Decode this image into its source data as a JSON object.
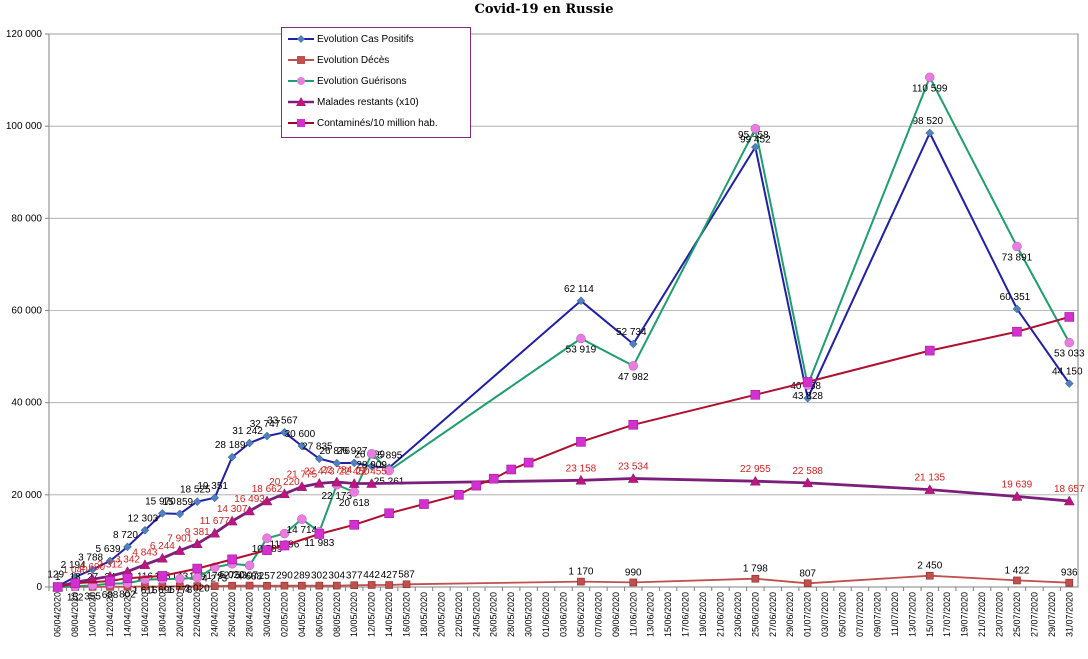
{
  "chart_data": {
    "type": "line",
    "title": "Covid-19 en Russie",
    "ylim": [
      0,
      120000
    ],
    "yticks": [
      0,
      20000,
      40000,
      60000,
      80000,
      100000,
      120000
    ],
    "ytick_labels": [
      "0",
      "20 000",
      "40 000",
      "60 000",
      "80 000",
      "100 000",
      "120 000"
    ],
    "grid": true,
    "legend_position": "top-left",
    "x_dates": [
      "06/04/2020",
      "08/04/2020",
      "10/04/2020",
      "12/04/2020",
      "14/04/2020",
      "16/04/2020",
      "18/04/2020",
      "20/04/2020",
      "22/04/2020",
      "24/04/2020",
      "26/04/2020",
      "28/04/2020",
      "30/04/2020",
      "02/05/2020",
      "04/05/2020",
      "06/05/2020",
      "08/05/2020",
      "10/05/2020",
      "12/05/2020",
      "14/05/2020",
      "16/05/2020",
      "18/05/2020",
      "20/05/2020",
      "22/05/2020",
      "24/05/2020",
      "26/05/2020",
      "28/05/2020",
      "30/05/2020",
      "01/06/2020",
      "03/06/2020",
      "05/06/2020",
      "07/06/2020",
      "09/06/2020",
      "11/06/2020",
      "13/06/2020",
      "15/06/2020",
      "17/06/2020",
      "19/06/2020",
      "21/06/2020",
      "23/06/2020",
      "25/06/2020",
      "27/06/2020",
      "29/06/2020",
      "01/07/2020",
      "03/07/2020",
      "05/07/2020",
      "07/07/2020",
      "09/07/2020",
      "11/07/2020",
      "13/07/2020",
      "15/07/2020",
      "17/07/2020",
      "19/07/2020",
      "21/07/2020",
      "23/07/2020",
      "25/07/2020",
      "27/07/2020",
      "29/07/2020",
      "31/07/2020"
    ],
    "series": [
      {
        "name": "Evolution Cas Positifs",
        "color": "#1f1fa8",
        "marker": "diamond",
        "points": [
          [
            "06/04/2020",
            129
          ],
          [
            "08/04/2020",
            2194
          ],
          [
            "10/04/2020",
            3788
          ],
          [
            "12/04/2020",
            5639
          ],
          [
            "14/04/2020",
            8720
          ],
          [
            "16/04/2020",
            12303
          ],
          [
            "18/04/2020",
            15970
          ],
          [
            "20/04/2020",
            15859
          ],
          [
            "22/04/2020",
            18525
          ],
          [
            "24/04/2020",
            19351
          ],
          [
            "26/04/2020",
            28189
          ],
          [
            "28/04/2020",
            31242
          ],
          [
            "30/04/2020",
            32747
          ],
          [
            "02/05/2020",
            33567
          ],
          [
            "04/05/2020",
            30600
          ],
          [
            "06/05/2020",
            27835
          ],
          [
            "08/05/2020",
            26876
          ],
          [
            "10/05/2020",
            26927
          ],
          [
            "12/05/2020",
            26199
          ],
          [
            "14/05/2020",
            25895
          ],
          [
            "05/06/2020",
            62114
          ],
          [
            "11/06/2020",
            52734
          ],
          [
            "25/06/2020",
            95458
          ],
          [
            "01/07/2020",
            40968
          ],
          [
            "15/07/2020",
            98520
          ],
          [
            "25/07/2020",
            60351
          ],
          [
            "31/07/2020",
            44150
          ]
        ],
        "labels": [
          "129",
          "2 194",
          "3 788",
          "5 639",
          "8 720",
          "12 303",
          "15 970",
          "15 859",
          "18 525",
          "19 351",
          "28 189",
          "31 242",
          "32 747",
          "33 567",
          "30 600",
          "27 835",
          "26 876",
          "26 927",
          "26 199",
          "25 895",
          "62 114",
          "52 734",
          "95 458",
          "40 968",
          "98 520",
          "60 351",
          "44 150"
        ]
      },
      {
        "name": "Evolution Décès",
        "color": "#c0504d",
        "marker": "square",
        "points": [
          [
            "06/04/2020",
            1
          ],
          [
            "08/04/2020",
            18
          ],
          [
            "10/04/2020",
            27
          ],
          [
            "12/04/2020",
            34
          ],
          [
            "14/04/2020",
            58
          ],
          [
            "16/04/2020",
            116
          ],
          [
            "18/04/2020",
            115
          ],
          [
            "20/04/2020",
            143
          ],
          [
            "22/04/2020",
            159
          ],
          [
            "24/04/2020",
            179
          ],
          [
            "26/04/2020",
            275
          ],
          [
            "28/04/2020",
            307
          ],
          [
            "30/04/2020",
            257
          ],
          [
            "02/05/2020",
            290
          ],
          [
            "04/05/2020",
            289
          ],
          [
            "06/05/2020",
            302
          ],
          [
            "08/05/2020",
            304
          ],
          [
            "10/05/2020",
            377
          ],
          [
            "12/05/2020",
            442
          ],
          [
            "14/05/2020",
            427
          ],
          [
            "16/05/2020",
            587
          ],
          [
            "05/06/2020",
            1170
          ],
          [
            "11/06/2020",
            990
          ],
          [
            "25/06/2020",
            1798
          ],
          [
            "01/07/2020",
            807
          ],
          [
            "15/07/2020",
            2450
          ],
          [
            "25/07/2020",
            1422
          ],
          [
            "31/07/2020",
            936
          ]
        ],
        "labels": [
          "1",
          "18",
          "27",
          "34",
          "58",
          "116",
          "115",
          "143",
          "159",
          "179",
          "275",
          "307",
          "257",
          "290",
          "289",
          "302",
          "304",
          "377",
          "442",
          "427",
          "587",
          "1 170",
          "990",
          "1 798",
          "807",
          "2 450",
          "1 422",
          "936"
        ]
      },
      {
        "name": "Evolution Guérisons",
        "color": "#1e9e6e",
        "marker": "circle",
        "points": [
          [
            "06/04/2020",
            0
          ],
          [
            "08/04/2020",
            152
          ],
          [
            "10/04/2020",
            355
          ],
          [
            "12/04/2020",
            688
          ],
          [
            "14/04/2020",
            802
          ],
          [
            "16/04/2020",
            1616
          ],
          [
            "18/04/2020",
            1695
          ],
          [
            "20/04/2020",
            1778
          ],
          [
            "22/04/2020",
            2020
          ],
          [
            "24/04/2020",
            4273
          ],
          [
            "26/04/2020",
            5020
          ],
          [
            "28/04/2020",
            4688
          ],
          [
            "30/04/2020",
            10589
          ],
          [
            "02/05/2020",
            11596
          ],
          [
            "04/05/2020",
            14714
          ],
          [
            "06/05/2020",
            11983
          ],
          [
            "08/05/2020",
            22173
          ],
          [
            "10/05/2020",
            20618
          ],
          [
            "12/05/2020",
            28909
          ],
          [
            "14/05/2020",
            25261
          ],
          [
            "05/06/2020",
            53919
          ],
          [
            "11/06/2020",
            47982
          ],
          [
            "25/06/2020",
            99452
          ],
          [
            "01/07/2020",
            43828
          ],
          [
            "15/07/2020",
            110599
          ],
          [
            "25/07/2020",
            73891
          ],
          [
            "31/07/2020",
            53033
          ]
        ],
        "labels": [
          "",
          "152",
          "355",
          "688",
          "802",
          "1 616",
          "1 695",
          "1 778",
          "2 020",
          "4 273",
          "5 020",
          "4 688",
          "10 589",
          "11 596",
          "14 714",
          "11 983",
          "22 173",
          "20 618",
          "28 909",
          "25 261",
          "53 919",
          "47 982",
          "99 452",
          "43 828",
          "110 599",
          "73 891",
          "53 033"
        ]
      },
      {
        "name": "Malades restants (x10)",
        "color": "#7b1f7b",
        "marker": "triangle",
        "label_color": "#d32020",
        "points": [
          [
            "06/04/2020",
            0
          ],
          [
            "08/04/2020",
            1040
          ],
          [
            "10/04/2020",
            1690
          ],
          [
            "12/04/2020",
            2312
          ],
          [
            "14/04/2020",
            3342
          ],
          [
            "16/04/2020",
            4843
          ],
          [
            "18/04/2020",
            6244
          ],
          [
            "20/04/2020",
            7901
          ],
          [
            "22/04/2020",
            9381
          ],
          [
            "24/04/2020",
            11677
          ],
          [
            "26/04/2020",
            14307
          ],
          [
            "28/04/2020",
            16493
          ],
          [
            "30/04/2020",
            18662
          ],
          [
            "02/05/2020",
            20220
          ],
          [
            "04/05/2020",
            21775
          ],
          [
            "06/05/2020",
            22473
          ],
          [
            "08/05/2020",
            22784
          ],
          [
            "10/05/2020",
            22450
          ],
          [
            "12/05/2020",
            22455
          ],
          [
            "05/06/2020",
            23158
          ],
          [
            "11/06/2020",
            23534
          ],
          [
            "25/06/2020",
            22955
          ],
          [
            "01/07/2020",
            22588
          ],
          [
            "15/07/2020",
            21135
          ],
          [
            "25/07/2020",
            19639
          ],
          [
            "31/07/2020",
            18657
          ]
        ],
        "labels": [
          "",
          "1 040",
          "1 690",
          "2 312",
          "3 342",
          "4 843",
          "6 244",
          "7 901",
          "9 381",
          "11 677",
          "14 307",
          "16 493",
          "18 662",
          "20 220",
          "21 775",
          "22 473",
          "22 784",
          "22 450",
          "22 455",
          "23 158",
          "23 534",
          "22 955",
          "22 588",
          "21 135",
          "19 639",
          "18 657"
        ]
      },
      {
        "name": "Contaminés/10 million hab.",
        "color": "#d42fd0",
        "marker": "square",
        "points": [
          [
            "06/04/2020",
            0
          ],
          [
            "08/04/2020",
            800
          ],
          [
            "12/04/2020",
            1300
          ],
          [
            "14/04/2020",
            1900
          ],
          [
            "18/04/2020",
            2400
          ],
          [
            "22/04/2020",
            4000
          ],
          [
            "26/04/2020",
            6000
          ],
          [
            "30/04/2020",
            8000
          ],
          [
            "02/05/2020",
            9000
          ],
          [
            "06/05/2020",
            11500
          ],
          [
            "10/05/2020",
            13500
          ],
          [
            "14/05/2020",
            16000
          ],
          [
            "18/05/2020",
            18000
          ],
          [
            "22/05/2020",
            20000
          ],
          [
            "24/05/2020",
            22000
          ],
          [
            "26/05/2020",
            23500
          ],
          [
            "28/05/2020",
            25500
          ],
          [
            "30/05/2020",
            27000
          ],
          [
            "05/06/2020",
            31500
          ],
          [
            "11/06/2020",
            35200
          ],
          [
            "25/06/2020",
            41700
          ],
          [
            "01/07/2020",
            44500
          ],
          [
            "15/07/2020",
            51300
          ],
          [
            "25/07/2020",
            55400
          ],
          [
            "31/07/2020",
            58600
          ]
        ],
        "labels": []
      }
    ]
  }
}
